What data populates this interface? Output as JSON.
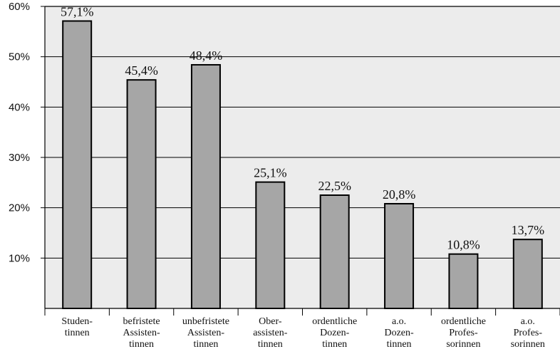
{
  "chart_data": {
    "type": "bar",
    "categories": [
      [
        "Studen-",
        "tinnen"
      ],
      [
        "befristete",
        "Assisten-",
        "tinnen"
      ],
      [
        "unbefristete",
        "Assisten-",
        "tinnen"
      ],
      [
        "Ober-",
        "assisten-",
        "tinnen"
      ],
      [
        "ordentliche",
        "Dozen-",
        "tinnen"
      ],
      [
        "a.o.",
        "Dozen-",
        "tinnen"
      ],
      [
        "ordentliche",
        "Profes-",
        "sorinnen"
      ],
      [
        "a.o.",
        "Profes-",
        "sorinnen"
      ]
    ],
    "values": [
      57.1,
      45.4,
      48.4,
      25.1,
      22.5,
      20.8,
      10.8,
      13.7
    ],
    "value_labels": [
      "57,1%",
      "45,4%",
      "48,4%",
      "25,1%",
      "22,5%",
      "20,8%",
      "10,8%",
      "13,7%"
    ],
    "title": "",
    "xlabel": "",
    "ylabel": "",
    "ylim": [
      0,
      60
    ],
    "yticks": [
      10,
      20,
      30,
      40,
      50,
      60
    ],
    "ytick_labels": [
      "10%",
      "20%",
      "30%",
      "40%",
      "50%",
      "60%"
    ],
    "grid": true,
    "colors": {
      "bar_fill": "#a6a6a6",
      "bar_stroke": "#000000",
      "plot_background": "#ececec",
      "grid": "#000000"
    }
  }
}
